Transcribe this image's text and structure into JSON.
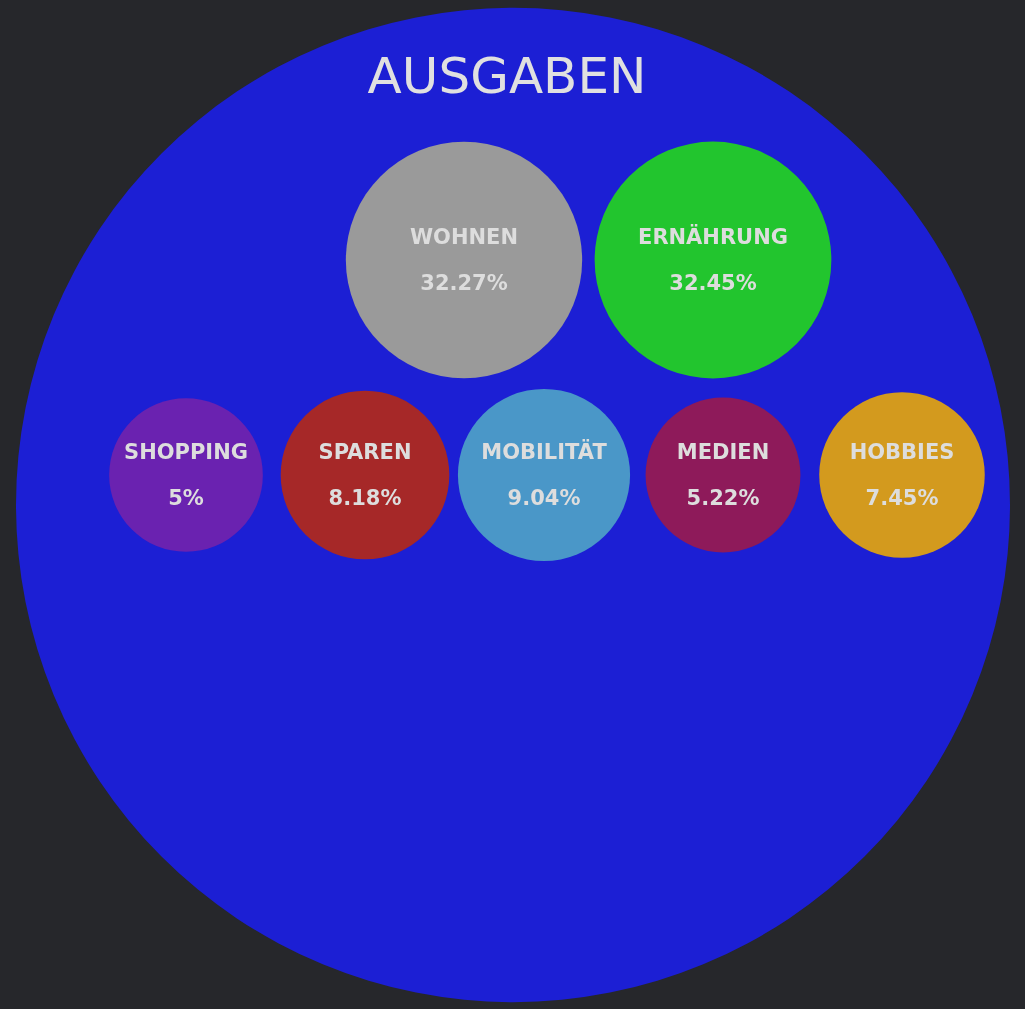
{
  "chart_data": {
    "type": "other",
    "title": "AUSGABEN",
    "categories": [
      "WOHNEN",
      "ERNÄHRUNG",
      "SHOPPING",
      "SPAREN",
      "MOBILITÄT",
      "MEDIEN",
      "HOBBIES"
    ],
    "values": [
      32.27,
      32.45,
      5,
      8.18,
      9.04,
      5.22,
      7.45
    ],
    "value_labels": [
      "32.27%",
      "32.45%",
      "5%",
      "8.18%",
      "9.04%",
      "5.22%",
      "7.45%"
    ],
    "colors": [
      "#9a9a9a",
      "#22c52e",
      "#6a22b0",
      "#a62828",
      "#4a97c8",
      "#8e1a5a",
      "#d39a1e"
    ]
  }
}
